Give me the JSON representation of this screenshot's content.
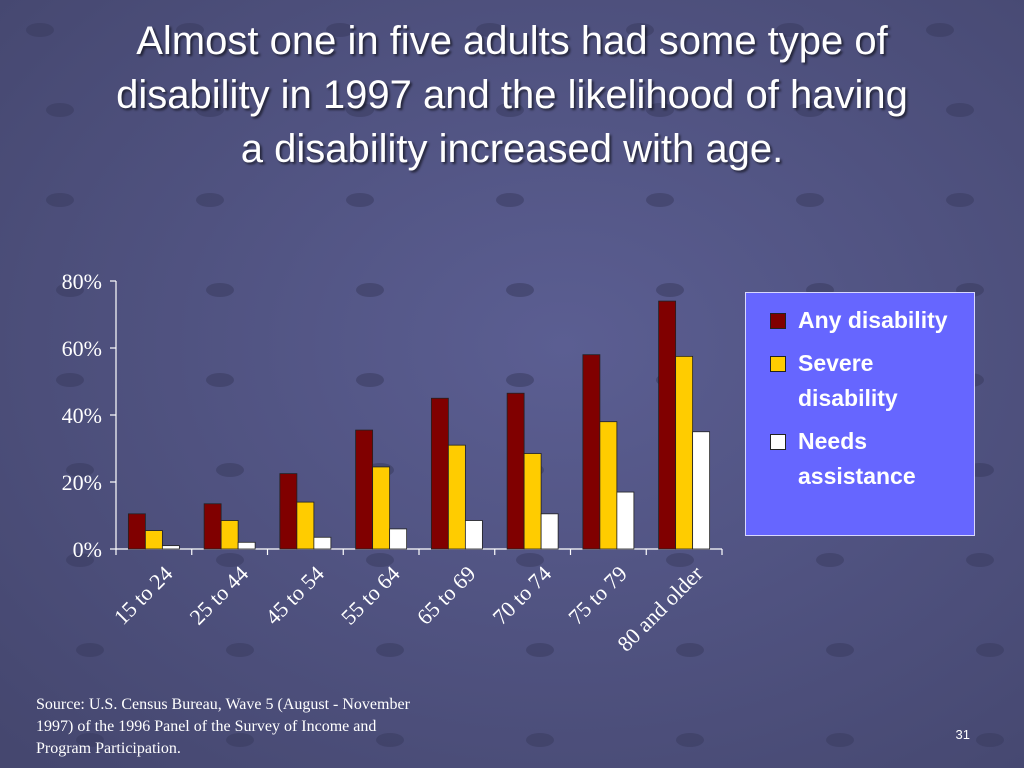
{
  "slide": {
    "title_lines": [
      "Almost one in five adults had some type of",
      "disability in 1997 and the likelihood of having",
      "a disability increased with age."
    ],
    "source_lines": [
      "Source: U.S. Census Bureau, Wave 5 (August - November",
      "1997) of the 1996 Panel of the Survey of Income and",
      "Program Participation."
    ],
    "slide_number": "31"
  },
  "chart_data": {
    "type": "bar",
    "title": "",
    "xlabel": "",
    "ylabel": "",
    "ylim": [
      0,
      80
    ],
    "yticks": [
      "0%",
      "20%",
      "40%",
      "60%",
      "80%"
    ],
    "ytick_values": [
      0,
      20,
      40,
      60,
      80
    ],
    "grid": false,
    "legend_position": "right",
    "categories": [
      "15 to 24",
      "25 to 44",
      "45 to 54",
      "55 to 64",
      "65 to 69",
      "70 to 74",
      "75 to 79",
      "80 and older"
    ],
    "series": [
      {
        "name": "Any disability",
        "color": "#800000",
        "values": [
          10.5,
          13.5,
          22.5,
          35.5,
          45.0,
          46.5,
          58.0,
          74.0
        ]
      },
      {
        "name": "Severe disability",
        "color": "#ffcc00",
        "values": [
          5.5,
          8.5,
          14.0,
          24.5,
          31.0,
          28.5,
          38.0,
          57.5
        ]
      },
      {
        "name": "Needs assistance",
        "color": "#ffffff",
        "values": [
          1.0,
          2.0,
          3.5,
          6.0,
          8.5,
          10.5,
          17.0,
          35.0
        ]
      }
    ]
  },
  "colors": {
    "background": "#4f5181",
    "legend_background": "#6666ff"
  }
}
